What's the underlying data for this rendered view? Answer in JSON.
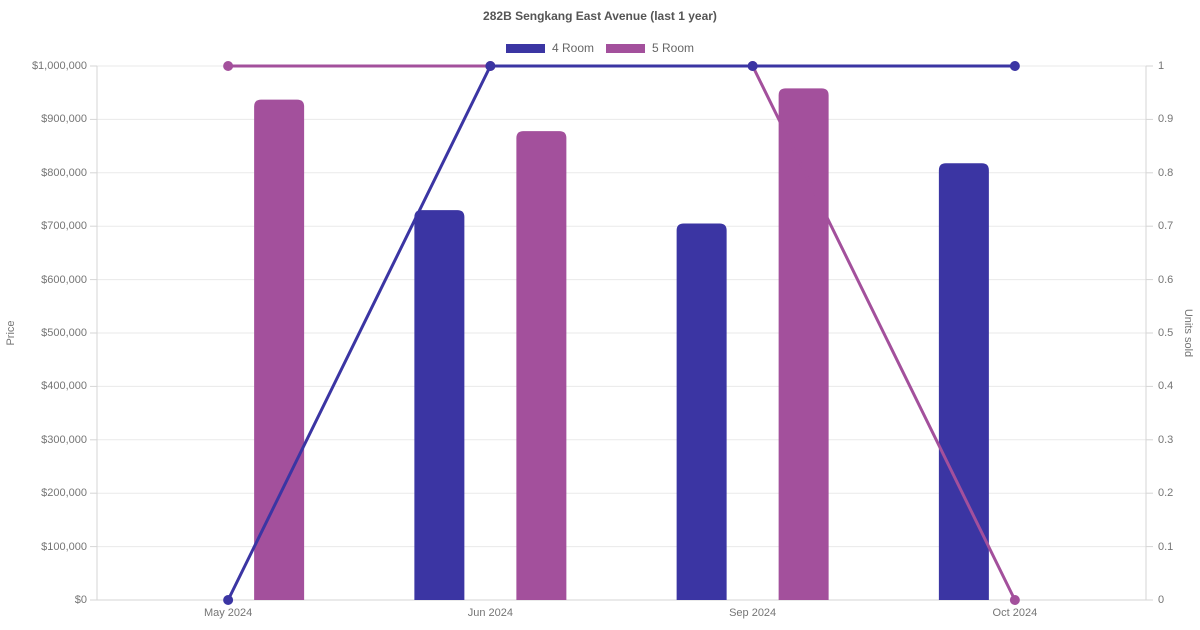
{
  "colors": {
    "four_room": "#3b35a3",
    "five_room": "#a3509c",
    "grid": "#eaeaea",
    "axis_line": "#d6d6d6",
    "tick_text": "#757575",
    "title_text": "#555555"
  },
  "chart_data": {
    "type": "combo-bar-line",
    "title": "282B Sengkang East Avenue (last 1 year)",
    "legend_position": "top",
    "grid": true,
    "categories": [
      "May 2024",
      "Jun 2024",
      "Sep 2024",
      "Oct 2024"
    ],
    "bar_series": [
      {
        "name": "4 Room",
        "color": "#3b35a3",
        "axis": "left",
        "values": [
          null,
          730000,
          705000,
          818000
        ]
      },
      {
        "name": "5 Room",
        "color": "#a3509c",
        "axis": "left",
        "values": [
          937000,
          878000,
          958000,
          null
        ]
      }
    ],
    "line_series": [
      {
        "name": "5 Room",
        "color": "#a3509c",
        "axis": "right",
        "values": [
          1,
          1,
          1,
          0
        ]
      },
      {
        "name": "4 Room",
        "color": "#3b35a3",
        "axis": "right",
        "values": [
          0,
          1,
          1,
          1
        ]
      }
    ],
    "left_axis": {
      "title": "Price",
      "min": 0,
      "max": 1000000,
      "tick_labels": [
        "$0",
        "$100,000",
        "$200,000",
        "$300,000",
        "$400,000",
        "$500,000",
        "$600,000",
        "$700,000",
        "$800,000",
        "$900,000",
        "$1,000,000"
      ]
    },
    "right_axis": {
      "title": "Units sold",
      "min": 0,
      "max": 1,
      "tick_labels": [
        "0",
        "0.1",
        "0.2",
        "0.3",
        "0.4",
        "0.5",
        "0.6",
        "0.7",
        "0.8",
        "0.9",
        "1"
      ]
    }
  }
}
